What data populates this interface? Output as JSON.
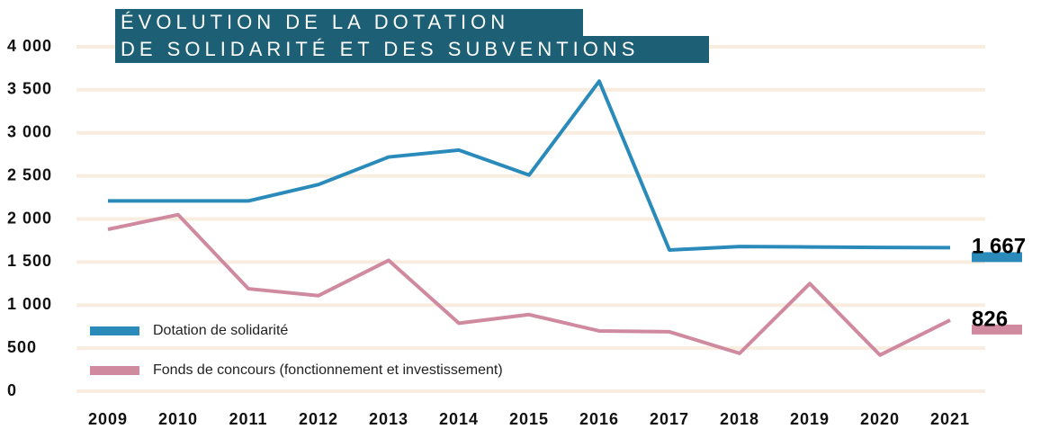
{
  "chart_data": {
    "type": "line",
    "title": [
      "ÉVOLUTION DE LA DOTATION",
      "DE SOLIDARITÉ ET DES SUBVENTIONS"
    ],
    "categories": [
      "2009",
      "2010",
      "2011",
      "2012",
      "2013",
      "2014",
      "2015",
      "2016",
      "2017",
      "2018",
      "2019",
      "2020",
      "2021"
    ],
    "series": [
      {
        "name": "Dotation de solidarité",
        "color": "#2a8bbb",
        "values": [
          2210,
          2210,
          2210,
          2400,
          2720,
          2800,
          2510,
          3600,
          1640,
          1680,
          1675,
          1670,
          1667
        ],
        "value_labels": [
          null,
          null,
          null,
          null,
          null,
          null,
          null,
          null,
          null,
          null,
          null,
          null,
          "1 667"
        ]
      },
      {
        "name": "Fonds de concours (fonctionnement et investissement)",
        "color": "#d08aa0",
        "values": [
          1880,
          2050,
          1190,
          1110,
          1520,
          790,
          890,
          700,
          690,
          440,
          1250,
          420,
          826
        ],
        "value_labels": [
          null,
          null,
          null,
          null,
          null,
          null,
          null,
          null,
          null,
          null,
          null,
          null,
          "826"
        ]
      }
    ],
    "ylim": [
      0,
      4000
    ],
    "yticks": [
      0,
      500,
      {
        "value": 1000,
        "label": "1 000"
      },
      {
        "value": 1500,
        "label": "1 500"
      },
      {
        "value": 2000,
        "label": "2 000"
      },
      {
        "value": 2500,
        "label": "2 500"
      },
      {
        "value": 3000,
        "label": "3 000"
      },
      {
        "value": 3500,
        "label": "3 500"
      },
      {
        "value": 4000,
        "label": "4 000"
      }
    ],
    "grid": true,
    "legend": "lower left"
  }
}
